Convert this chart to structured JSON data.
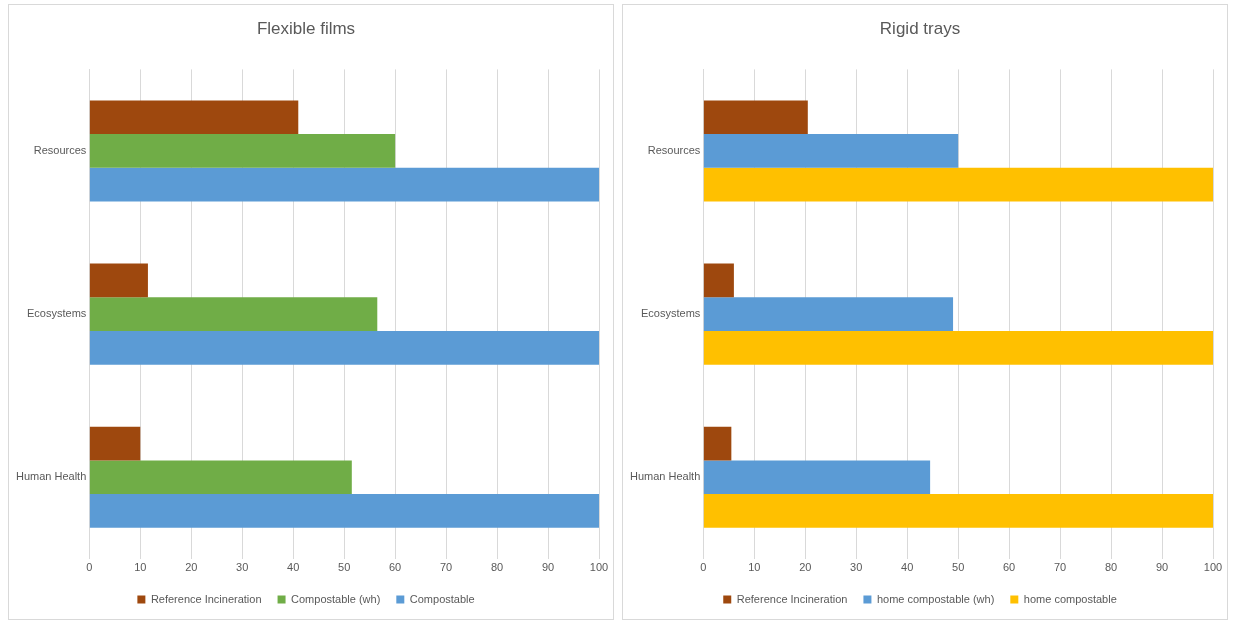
{
  "chart_data": [
    {
      "type": "bar",
      "orientation": "horizontal",
      "title": "Flexible films",
      "categories": [
        "Resources",
        "Ecosystems",
        "Human Health"
      ],
      "series": [
        {
          "name": "Reference Incineration",
          "color": "#9e480e",
          "values": [
            41,
            11.5,
            10
          ]
        },
        {
          "name": "Compostable (wh)",
          "color": "#70ad47",
          "values": [
            60,
            56.5,
            51.5
          ]
        },
        {
          "name": "Compostable",
          "color": "#5b9bd5",
          "values": [
            100,
            100,
            100
          ]
        }
      ],
      "xlim": [
        0,
        100
      ],
      "xticks": [
        0,
        10,
        20,
        30,
        40,
        50,
        60,
        70,
        80,
        90,
        100
      ],
      "grid": "x",
      "legend": "bottom"
    },
    {
      "type": "bar",
      "orientation": "horizontal",
      "title": "Rigid trays",
      "categories": [
        "Resources",
        "Ecosystems",
        "Human Health"
      ],
      "series": [
        {
          "name": "Reference Incineration",
          "color": "#9e480e",
          "values": [
            20.5,
            6,
            5.5
          ]
        },
        {
          "name": "home compostable (wh)",
          "color": "#5b9bd5",
          "values": [
            50,
            49,
            44.5
          ]
        },
        {
          "name": "home compostable",
          "color": "#ffc000",
          "values": [
            100,
            100,
            100
          ]
        }
      ],
      "xlim": [
        0,
        100
      ],
      "xticks": [
        0,
        10,
        20,
        30,
        40,
        50,
        60,
        70,
        80,
        90,
        100
      ],
      "grid": "x",
      "legend": "bottom"
    }
  ]
}
